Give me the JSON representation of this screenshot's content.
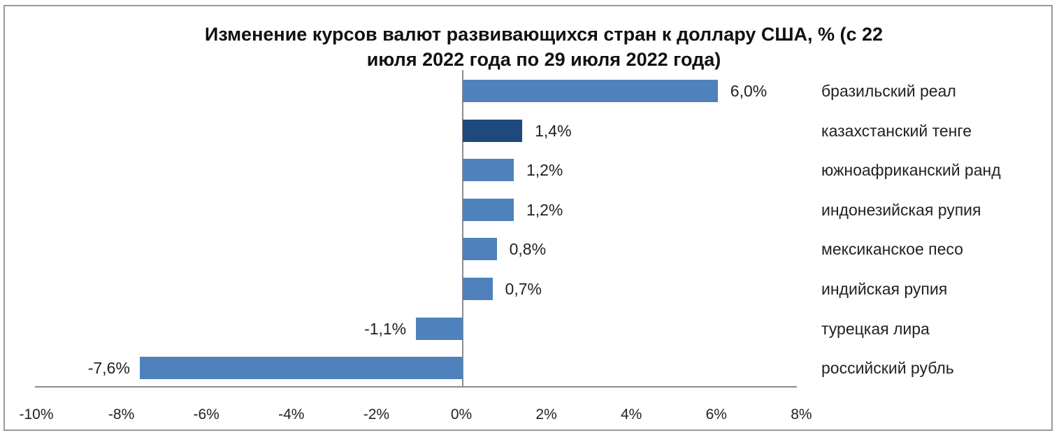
{
  "chart_data": {
    "type": "bar",
    "orientation": "horizontal",
    "title": "Изменение курсов валют развивающихся стран к доллару США, % (с 22 июля 2022 года по 29 июля 2022 года)",
    "title_lines": [
      "Изменение курсов валют развивающихся стран к доллару США, % (с 22",
      "июля 2022 года по 29 июля 2022 года)"
    ],
    "xlabel": "",
    "ylabel": "",
    "xlim": [
      -10,
      8
    ],
    "x_ticks": [
      "-10%",
      "-8%",
      "-6%",
      "-4%",
      "-2%",
      "0%",
      "2%",
      "4%",
      "6%",
      "8%"
    ],
    "grid": false,
    "legend": null,
    "categories": [
      "бразильский реал",
      "казахстанский тенге",
      "южноафриканский ранд",
      "индонезийская рупия",
      "мексиканское песо",
      "индийская рупия",
      "турецкая лира",
      "российский рубль"
    ],
    "values": [
      6.0,
      1.4,
      1.2,
      1.2,
      0.8,
      0.7,
      -1.1,
      -7.6
    ],
    "value_labels": [
      "6,0%",
      "1,4%",
      "1,2%",
      "1,2%",
      "0,8%",
      "0,7%",
      "-1,1%",
      "-7,6%"
    ],
    "highlighted_category": "казахстанский тенге",
    "colors": {
      "bar": "#4F81BD",
      "highlight": "#1F497D",
      "axis": "#8C8C8C",
      "frame": "#9A9A9A"
    }
  }
}
